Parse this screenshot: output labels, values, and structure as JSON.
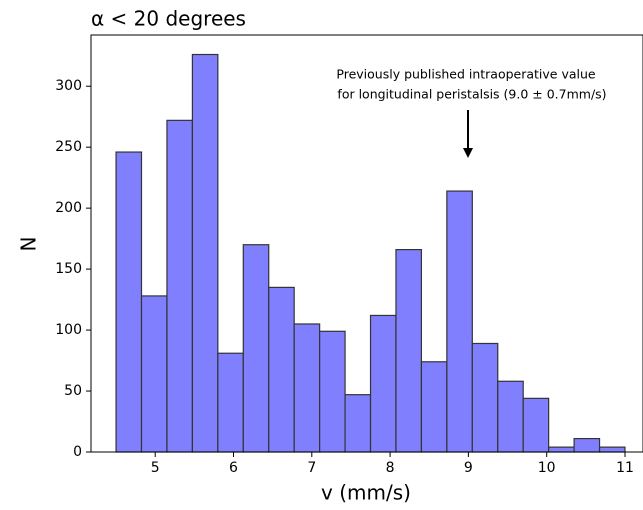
{
  "chart_data": {
    "type": "histogram",
    "title": "α < 20 degrees",
    "x_label": "v (mm/s)",
    "y_label": "N",
    "annotation": [
      "Previously published intraoperative value",
      "for longitudinal peristalsis (9.0 ± 0.7mm/s)"
    ],
    "bins": [
      4.5,
      4.825,
      5.15,
      5.475,
      5.8,
      6.125,
      6.45,
      6.775,
      7.1,
      7.425,
      7.75,
      8.075,
      8.4,
      8.725,
      9.05,
      9.375,
      9.7,
      10.025,
      10.35,
      10.675,
      11.0
    ],
    "values": [
      246,
      128,
      272,
      326,
      81,
      170,
      135,
      105,
      99,
      47,
      112,
      166,
      74,
      214,
      89,
      58,
      44,
      4,
      11,
      4
    ],
    "color": "#8080ff",
    "edgecolor": "#333333",
    "xlim": [
      4.18,
      11.23
    ],
    "xticks": [
      5,
      6,
      7,
      8,
      9,
      10,
      11
    ],
    "ylim": [
      0,
      342
    ],
    "yticks": [
      0,
      50,
      100,
      150,
      200,
      250,
      300
    ]
  }
}
